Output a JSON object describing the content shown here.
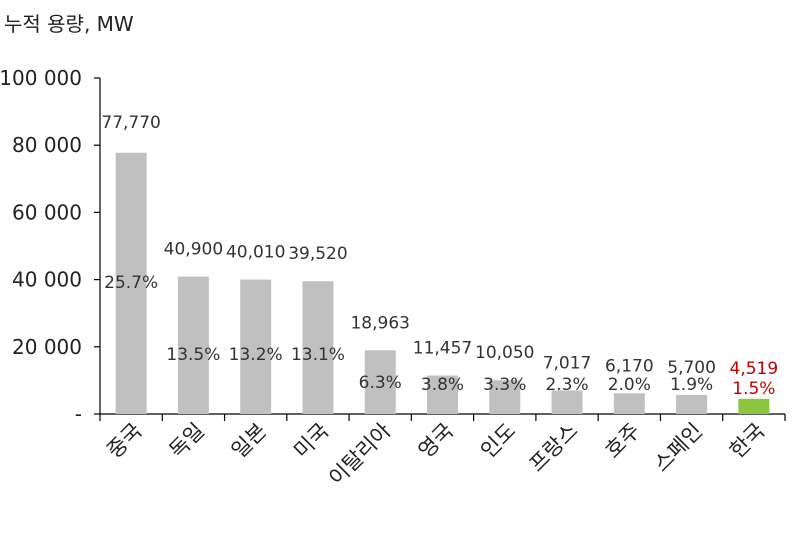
{
  "chart_data": {
    "type": "bar",
    "ylabel": "누적 용량, MW",
    "categories": [
      "중국",
      "독일",
      "일본",
      "미국",
      "이탈리아",
      "영국",
      "인도",
      "프랑스",
      "호주",
      "스페인",
      "한국"
    ],
    "values": [
      77770,
      40900,
      40010,
      39520,
      18963,
      11457,
      10050,
      7017,
      6170,
      5700,
      4519
    ],
    "value_labels": [
      "77,770",
      "40,900",
      "40,010",
      "39,520",
      "18,963",
      "11,457",
      "10,050",
      "7,017",
      "6,170",
      "5,700",
      "4,519"
    ],
    "share_labels": [
      "25.7%",
      "13.5%",
      "13.2%",
      "13.1%",
      "6.3%",
      "3.8%",
      "3.3%",
      "2.3%",
      "2.0%",
      "1.9%",
      "1.5%"
    ],
    "ylim": [
      0,
      100000
    ],
    "yticks": [
      0,
      20000,
      40000,
      60000,
      80000,
      100000
    ],
    "ytick_labels": [
      "-",
      "20 000",
      "40 000",
      "60 000",
      "80 000",
      "100 000"
    ],
    "grid": false,
    "legend": "none",
    "colors": {
      "bar": "#c0c0c0",
      "highlight_bar": "#8cc63f",
      "highlight_text": "#c00000",
      "axis": "#000000",
      "text": "#333333"
    },
    "highlight_index": 10
  }
}
